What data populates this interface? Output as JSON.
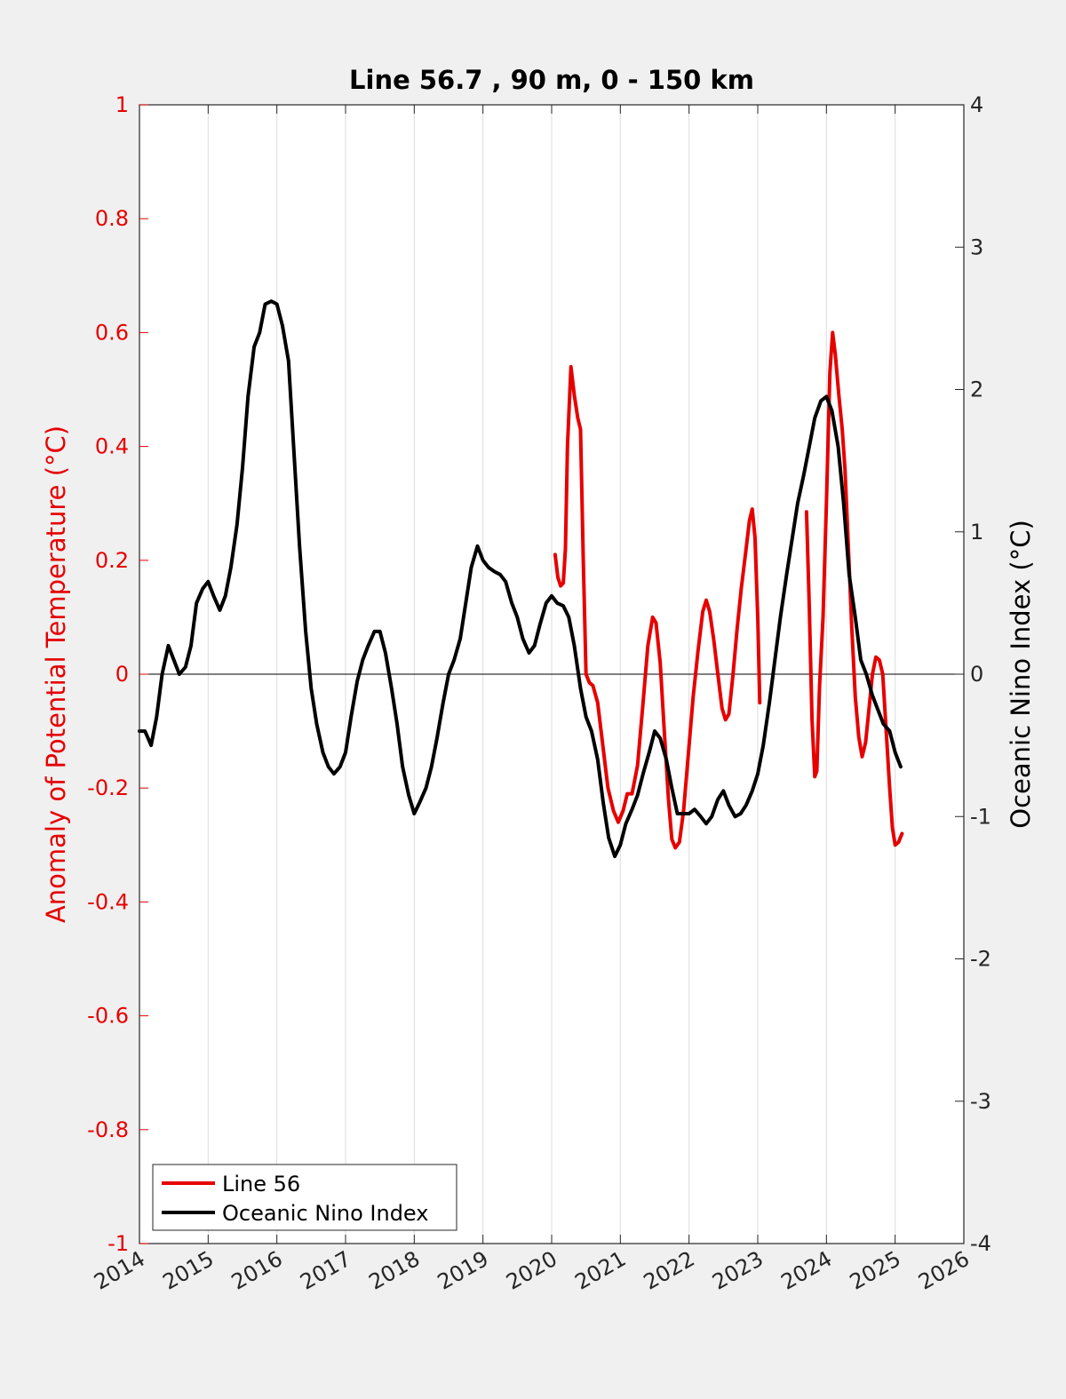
{
  "chart_data": {
    "type": "line",
    "title": "Line 56.7 , 90 m, 0 - 150 km",
    "xlabel": "",
    "ylabel_left": "Anomaly of Potential Temperature (°C)",
    "ylabel_right": "Oceanic Nino Index (°C)",
    "xlim": [
      2014,
      2026
    ],
    "ylim_left": [
      -1,
      1
    ],
    "ylim_right": [
      -4,
      4
    ],
    "x_ticks": [
      "2014",
      "2015",
      "2016",
      "2017",
      "2018",
      "2019",
      "2020",
      "2021",
      "2022",
      "2023",
      "2024",
      "2025",
      "2026"
    ],
    "y_ticks_left": [
      "-1",
      "-0.8",
      "-0.6",
      "-0.4",
      "-0.2",
      "0",
      "0.2",
      "0.4",
      "0.6",
      "0.8",
      "1"
    ],
    "y_ticks_right": [
      "-4",
      "-3",
      "-2",
      "-1",
      "0",
      "1",
      "2",
      "3",
      "4"
    ],
    "vertical_grid": true,
    "zero_line": true,
    "legend_position": "bottom-left",
    "colors": {
      "left_axis": "#e60000",
      "line56": "#e60000",
      "oni": "#000000",
      "grid": "#dcdcdc",
      "axes_bg": "#ffffff",
      "figure_bg": "#f0f0f0"
    },
    "series": [
      {
        "name": "Line 56",
        "axis": "left",
        "color": "#e60000",
        "segments": [
          [
            [
              2020.05,
              0.21
            ],
            [
              2020.09,
              0.17
            ],
            [
              2020.13,
              0.155
            ],
            [
              2020.17,
              0.16
            ],
            [
              2020.2,
              0.22
            ],
            [
              2020.23,
              0.4
            ],
            [
              2020.28,
              0.54
            ],
            [
              2020.33,
              0.49
            ],
            [
              2020.38,
              0.45
            ],
            [
              2020.42,
              0.43
            ],
            [
              2020.46,
              0.2
            ],
            [
              2020.5,
              0.0
            ],
            [
              2020.55,
              -0.015
            ],
            [
              2020.6,
              -0.02
            ],
            [
              2020.67,
              -0.05
            ],
            [
              2020.74,
              -0.12
            ],
            [
              2020.82,
              -0.2
            ],
            [
              2020.9,
              -0.24
            ],
            [
              2020.97,
              -0.26
            ],
            [
              2021.04,
              -0.24
            ],
            [
              2021.1,
              -0.21
            ],
            [
              2021.17,
              -0.21
            ],
            [
              2021.25,
              -0.16
            ],
            [
              2021.33,
              -0.05
            ],
            [
              2021.4,
              0.05
            ],
            [
              2021.47,
              0.1
            ],
            [
              2021.52,
              0.09
            ],
            [
              2021.58,
              0.02
            ],
            [
              2021.64,
              -0.1
            ],
            [
              2021.7,
              -0.22
            ],
            [
              2021.75,
              -0.29
            ],
            [
              2021.8,
              -0.305
            ],
            [
              2021.86,
              -0.295
            ],
            [
              2021.92,
              -0.24
            ],
            [
              2021.99,
              -0.14
            ],
            [
              2022.06,
              -0.04
            ],
            [
              2022.13,
              0.04
            ],
            [
              2022.2,
              0.11
            ],
            [
              2022.25,
              0.13
            ],
            [
              2022.3,
              0.11
            ],
            [
              2022.36,
              0.06
            ],
            [
              2022.42,
              0.0
            ],
            [
              2022.48,
              -0.06
            ],
            [
              2022.53,
              -0.08
            ],
            [
              2022.58,
              -0.07
            ],
            [
              2022.64,
              0.0
            ],
            [
              2022.7,
              0.08
            ],
            [
              2022.76,
              0.15
            ],
            [
              2022.82,
              0.21
            ],
            [
              2022.88,
              0.27
            ],
            [
              2022.92,
              0.29
            ],
            [
              2022.96,
              0.24
            ],
            [
              2023.0,
              0.1
            ],
            [
              2023.03,
              -0.05
            ]
          ],
          [
            [
              2023.71,
              0.285
            ],
            [
              2023.75,
              0.12
            ],
            [
              2023.79,
              -0.08
            ],
            [
              2023.83,
              -0.18
            ],
            [
              2023.86,
              -0.17
            ],
            [
              2023.9,
              -0.02
            ],
            [
              2023.95,
              0.1
            ],
            [
              2024.0,
              0.3
            ],
            [
              2024.05,
              0.53
            ],
            [
              2024.09,
              0.6
            ],
            [
              2024.13,
              0.56
            ],
            [
              2024.18,
              0.49
            ],
            [
              2024.23,
              0.43
            ],
            [
              2024.27,
              0.36
            ],
            [
              2024.32,
              0.22
            ],
            [
              2024.37,
              0.08
            ],
            [
              2024.42,
              -0.04
            ],
            [
              2024.47,
              -0.11
            ],
            [
              2024.52,
              -0.145
            ],
            [
              2024.57,
              -0.12
            ],
            [
              2024.62,
              -0.06
            ],
            [
              2024.67,
              0.0
            ],
            [
              2024.72,
              0.03
            ],
            [
              2024.77,
              0.025
            ],
            [
              2024.82,
              0.0
            ],
            [
              2024.87,
              -0.1
            ],
            [
              2024.92,
              -0.2
            ],
            [
              2024.96,
              -0.27
            ],
            [
              2025.0,
              -0.3
            ],
            [
              2025.05,
              -0.295
            ],
            [
              2025.1,
              -0.28
            ]
          ]
        ]
      },
      {
        "name": "Oceanic Nino Index",
        "axis": "right",
        "color": "#000000",
        "points": [
          [
            2014.0,
            -0.4
          ],
          [
            2014.08,
            -0.4
          ],
          [
            2014.17,
            -0.5
          ],
          [
            2014.25,
            -0.3
          ],
          [
            2014.33,
            0.0
          ],
          [
            2014.42,
            0.2
          ],
          [
            2014.5,
            0.1
          ],
          [
            2014.58,
            0.0
          ],
          [
            2014.67,
            0.05
          ],
          [
            2014.75,
            0.2
          ],
          [
            2014.83,
            0.5
          ],
          [
            2014.92,
            0.6
          ],
          [
            2015.0,
            0.65
          ],
          [
            2015.08,
            0.55
          ],
          [
            2015.17,
            0.45
          ],
          [
            2015.25,
            0.55
          ],
          [
            2015.33,
            0.75
          ],
          [
            2015.42,
            1.05
          ],
          [
            2015.5,
            1.45
          ],
          [
            2015.58,
            1.95
          ],
          [
            2015.67,
            2.3
          ],
          [
            2015.75,
            2.4
          ],
          [
            2015.83,
            2.6
          ],
          [
            2015.92,
            2.62
          ],
          [
            2016.0,
            2.6
          ],
          [
            2016.08,
            2.45
          ],
          [
            2016.17,
            2.2
          ],
          [
            2016.25,
            1.55
          ],
          [
            2016.33,
            0.9
          ],
          [
            2016.42,
            0.3
          ],
          [
            2016.5,
            -0.1
          ],
          [
            2016.58,
            -0.35
          ],
          [
            2016.67,
            -0.55
          ],
          [
            2016.75,
            -0.65
          ],
          [
            2016.83,
            -0.7
          ],
          [
            2016.92,
            -0.65
          ],
          [
            2017.0,
            -0.55
          ],
          [
            2017.08,
            -0.3
          ],
          [
            2017.17,
            -0.05
          ],
          [
            2017.25,
            0.1
          ],
          [
            2017.33,
            0.2
          ],
          [
            2017.42,
            0.3
          ],
          [
            2017.5,
            0.3
          ],
          [
            2017.58,
            0.15
          ],
          [
            2017.67,
            -0.1
          ],
          [
            2017.75,
            -0.35
          ],
          [
            2017.83,
            -0.65
          ],
          [
            2017.92,
            -0.85
          ],
          [
            2018.0,
            -0.98
          ],
          [
            2018.08,
            -0.9
          ],
          [
            2018.17,
            -0.8
          ],
          [
            2018.25,
            -0.65
          ],
          [
            2018.33,
            -0.45
          ],
          [
            2018.42,
            -0.2
          ],
          [
            2018.5,
            0.0
          ],
          [
            2018.58,
            0.1
          ],
          [
            2018.67,
            0.25
          ],
          [
            2018.75,
            0.5
          ],
          [
            2018.83,
            0.75
          ],
          [
            2018.92,
            0.9
          ],
          [
            2019.0,
            0.8
          ],
          [
            2019.08,
            0.75
          ],
          [
            2019.17,
            0.72
          ],
          [
            2019.25,
            0.7
          ],
          [
            2019.33,
            0.65
          ],
          [
            2019.42,
            0.5
          ],
          [
            2019.5,
            0.4
          ],
          [
            2019.58,
            0.25
          ],
          [
            2019.67,
            0.15
          ],
          [
            2019.75,
            0.2
          ],
          [
            2019.83,
            0.35
          ],
          [
            2019.92,
            0.5
          ],
          [
            2020.0,
            0.55
          ],
          [
            2020.08,
            0.5
          ],
          [
            2020.17,
            0.48
          ],
          [
            2020.25,
            0.4
          ],
          [
            2020.33,
            0.2
          ],
          [
            2020.42,
            -0.1
          ],
          [
            2020.5,
            -0.3
          ],
          [
            2020.58,
            -0.4
          ],
          [
            2020.67,
            -0.6
          ],
          [
            2020.75,
            -0.9
          ],
          [
            2020.83,
            -1.15
          ],
          [
            2020.92,
            -1.28
          ],
          [
            2021.0,
            -1.2
          ],
          [
            2021.08,
            -1.05
          ],
          [
            2021.17,
            -0.95
          ],
          [
            2021.25,
            -0.85
          ],
          [
            2021.33,
            -0.7
          ],
          [
            2021.42,
            -0.55
          ],
          [
            2021.5,
            -0.4
          ],
          [
            2021.58,
            -0.45
          ],
          [
            2021.67,
            -0.6
          ],
          [
            2021.75,
            -0.8
          ],
          [
            2021.83,
            -0.98
          ],
          [
            2021.92,
            -0.98
          ],
          [
            2022.0,
            -0.98
          ],
          [
            2022.08,
            -0.95
          ],
          [
            2022.17,
            -1.0
          ],
          [
            2022.25,
            -1.05
          ],
          [
            2022.33,
            -1.0
          ],
          [
            2022.42,
            -0.88
          ],
          [
            2022.5,
            -0.82
          ],
          [
            2022.58,
            -0.92
          ],
          [
            2022.67,
            -1.0
          ],
          [
            2022.75,
            -0.98
          ],
          [
            2022.83,
            -0.92
          ],
          [
            2022.92,
            -0.82
          ],
          [
            2023.0,
            -0.7
          ],
          [
            2023.08,
            -0.5
          ],
          [
            2023.17,
            -0.2
          ],
          [
            2023.25,
            0.1
          ],
          [
            2023.33,
            0.4
          ],
          [
            2023.42,
            0.7
          ],
          [
            2023.5,
            0.95
          ],
          [
            2023.58,
            1.2
          ],
          [
            2023.67,
            1.4
          ],
          [
            2023.75,
            1.6
          ],
          [
            2023.83,
            1.8
          ],
          [
            2023.92,
            1.92
          ],
          [
            2024.0,
            1.95
          ],
          [
            2024.08,
            1.85
          ],
          [
            2024.17,
            1.6
          ],
          [
            2024.25,
            1.2
          ],
          [
            2024.33,
            0.7
          ],
          [
            2024.42,
            0.4
          ],
          [
            2024.5,
            0.1
          ],
          [
            2024.58,
            0.0
          ],
          [
            2024.67,
            -0.15
          ],
          [
            2024.75,
            -0.25
          ],
          [
            2024.83,
            -0.35
          ],
          [
            2024.92,
            -0.4
          ],
          [
            2025.0,
            -0.55
          ],
          [
            2025.08,
            -0.65
          ]
        ]
      }
    ]
  }
}
